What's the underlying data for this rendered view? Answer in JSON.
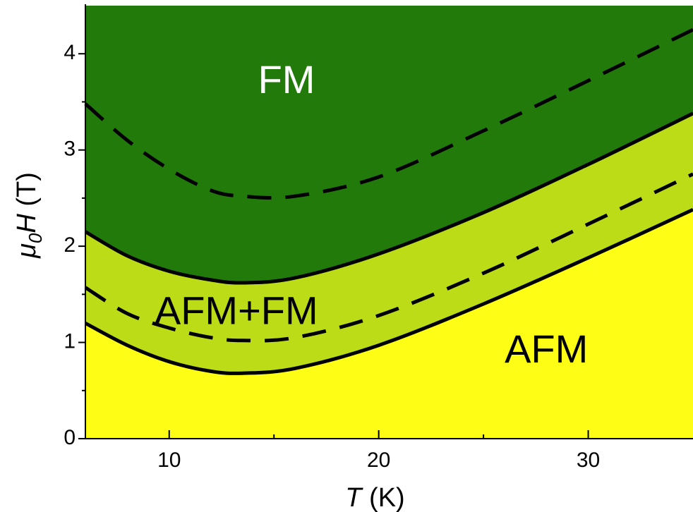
{
  "chart_data": {
    "type": "area",
    "xlabel": {
      "symbol": "T",
      "unit": "(K)"
    },
    "ylabel": {
      "symbol": "H",
      "prefix": "μ",
      "subscript": "0",
      "unit": "(T)"
    },
    "xlim": [
      6,
      35
    ],
    "ylim": [
      0,
      4.5
    ],
    "xticks": [
      10,
      20,
      30
    ],
    "yticks": [
      0,
      1,
      2,
      3,
      4
    ],
    "x_minor_ticks": [
      15,
      25
    ],
    "y_minor_ticks": [
      0.5,
      1.5,
      2.5,
      3.5
    ],
    "grid": false,
    "colors": {
      "FM": "#227a0a",
      "AFM+FM": "#bcdc18",
      "AFM": "#fdfd16"
    },
    "regions": [
      {
        "name": "FM",
        "label": "FM",
        "label_color": "#ffffff",
        "label_pos": [
          15.6,
          3.7
        ]
      },
      {
        "name": "AFM+FM",
        "label": "AFM+FM",
        "label_color": "#000000",
        "label_pos": [
          13.2,
          1.3
        ]
      },
      {
        "name": "AFM",
        "label": "AFM",
        "label_color": "#000000",
        "label_pos": [
          28.0,
          0.9
        ]
      }
    ],
    "series": [
      {
        "style": "solid",
        "x": [
          6,
          8,
          10,
          12,
          13.5,
          16,
          20,
          25,
          30,
          35
        ],
        "y": [
          2.15,
          1.9,
          1.74,
          1.65,
          1.62,
          1.67,
          1.92,
          2.35,
          2.85,
          3.38
        ]
      },
      {
        "style": "solid",
        "x": [
          6,
          8,
          10,
          12,
          13.5,
          16,
          20,
          25,
          30,
          35
        ],
        "y": [
          1.2,
          0.97,
          0.8,
          0.7,
          0.68,
          0.73,
          0.97,
          1.4,
          1.88,
          2.38
        ]
      },
      {
        "style": "dashed",
        "x": [
          6,
          8,
          10,
          12,
          13.5,
          16,
          20,
          25,
          30,
          35
        ],
        "y": [
          3.48,
          3.1,
          2.8,
          2.58,
          2.52,
          2.52,
          2.72,
          3.2,
          3.72,
          4.25
        ]
      },
      {
        "style": "dashed",
        "x": [
          6,
          8,
          10,
          12,
          13.5,
          16,
          20,
          25,
          30,
          35
        ],
        "y": [
          1.57,
          1.3,
          1.15,
          1.05,
          1.02,
          1.05,
          1.28,
          1.72,
          2.23,
          2.75
        ]
      }
    ]
  }
}
